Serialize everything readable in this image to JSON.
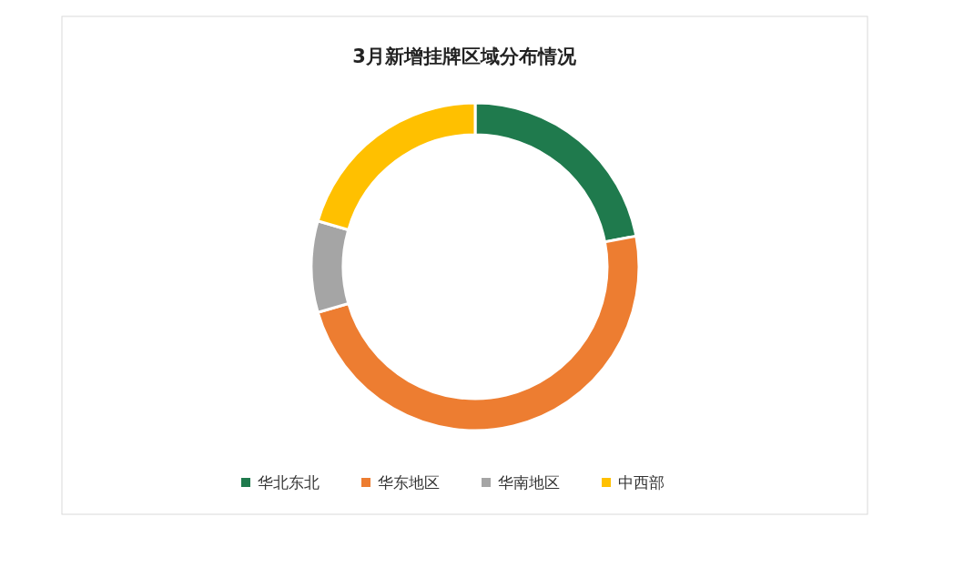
{
  "chart_data": {
    "type": "donut",
    "title": "3月新增挂牌区域分布情况",
    "categories": [
      "华北东北",
      "华东地区",
      "华南地区",
      "中西部"
    ],
    "values": [
      22,
      48.5,
      9,
      20.5
    ],
    "colors": [
      "#1f7a4d",
      "#ed7d31",
      "#a5a5a5",
      "#ffc000"
    ],
    "legend": "bottom"
  }
}
